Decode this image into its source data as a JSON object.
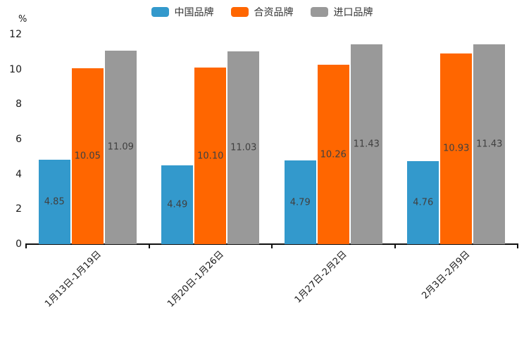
{
  "chart_data": {
    "type": "bar",
    "title": "",
    "xlabel": "",
    "ylabel": "%",
    "ylim": [
      0,
      12
    ],
    "yticks": [
      "0",
      "2",
      "4",
      "6",
      "8",
      "10",
      "12"
    ],
    "grid": false,
    "legend_position": "top-center",
    "value_label_position": "inside-center",
    "categories": [
      "1月13日-1月19日",
      "1月20日-1月26日",
      "1月27日-2月2日",
      "2月3日-2月9日"
    ],
    "series": [
      {
        "name": "中国品牌",
        "color": "#3399CC",
        "values": [
          4.85,
          4.49,
          4.79,
          4.76
        ],
        "labels": [
          "4.85",
          "4.49",
          "4.79",
          "4.76"
        ]
      },
      {
        "name": "合资品牌",
        "color": "#FF6600",
        "values": [
          10.05,
          10.1,
          10.26,
          10.93
        ],
        "labels": [
          "10.05",
          "10.10",
          "10.26",
          "10.93"
        ]
      },
      {
        "name": "进口品牌",
        "color": "#999999",
        "values": [
          11.09,
          11.03,
          11.43,
          11.43
        ],
        "labels": [
          "11.09",
          "11.03",
          "11.43",
          "11.43"
        ]
      }
    ],
    "colors": {
      "axis": "#111111",
      "tick_text": "#1a1a1a",
      "value_label_text": "#404040",
      "background": "#ffffff"
    }
  }
}
